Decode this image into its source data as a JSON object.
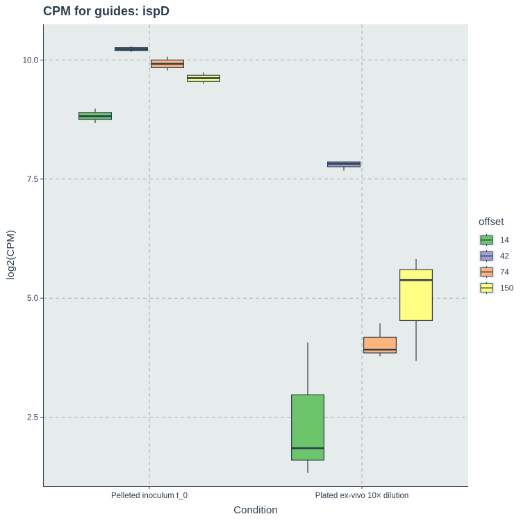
{
  "chart_data": {
    "type": "boxplot",
    "title": "CPM for guides: ispD",
    "xlabel": "Condition",
    "ylabel": "log2(CPM)",
    "ylim": [
      1.05,
      10.75
    ],
    "yticks": [
      2.5,
      5.0,
      7.5,
      10.0
    ],
    "ytick_labels": [
      "2.5",
      "5.0",
      "7.5",
      "10.0"
    ],
    "grid": true,
    "legend": {
      "title": "offset",
      "placement": "right"
    },
    "categories": [
      "Pelleted inoculum t_0",
      "Plated ex-vivo 10× dilution"
    ],
    "series": [
      {
        "name": "14",
        "color": "#6cc46b",
        "boxes": [
          {
            "min": 8.68,
            "q1": 8.75,
            "median": 8.82,
            "q3": 8.9,
            "max": 8.98
          },
          {
            "min": 1.33,
            "q1": 1.6,
            "median": 1.85,
            "q3": 2.97,
            "max": 4.07
          }
        ]
      },
      {
        "name": "42",
        "color": "#a39fd0",
        "boxes": [
          {
            "min": 10.17,
            "q1": 10.2,
            "median": 10.23,
            "q3": 10.26,
            "max": 10.29
          },
          {
            "min": 7.68,
            "q1": 7.76,
            "median": 7.82,
            "q3": 7.86,
            "max": 7.87
          }
        ]
      },
      {
        "name": "74",
        "color": "#fdb47d",
        "boxes": [
          {
            "min": 9.78,
            "q1": 9.84,
            "median": 9.92,
            "q3": 10.0,
            "max": 10.07
          },
          {
            "min": 3.78,
            "q1": 3.85,
            "median": 3.92,
            "q3": 4.18,
            "max": 4.47
          }
        ]
      },
      {
        "name": "150",
        "color": "#ffff83",
        "boxes": [
          {
            "min": 9.5,
            "q1": 9.55,
            "median": 9.62,
            "q3": 9.68,
            "max": 9.74
          },
          {
            "min": 3.68,
            "q1": 4.53,
            "median": 5.38,
            "q3": 5.6,
            "max": 5.82
          }
        ]
      }
    ]
  }
}
